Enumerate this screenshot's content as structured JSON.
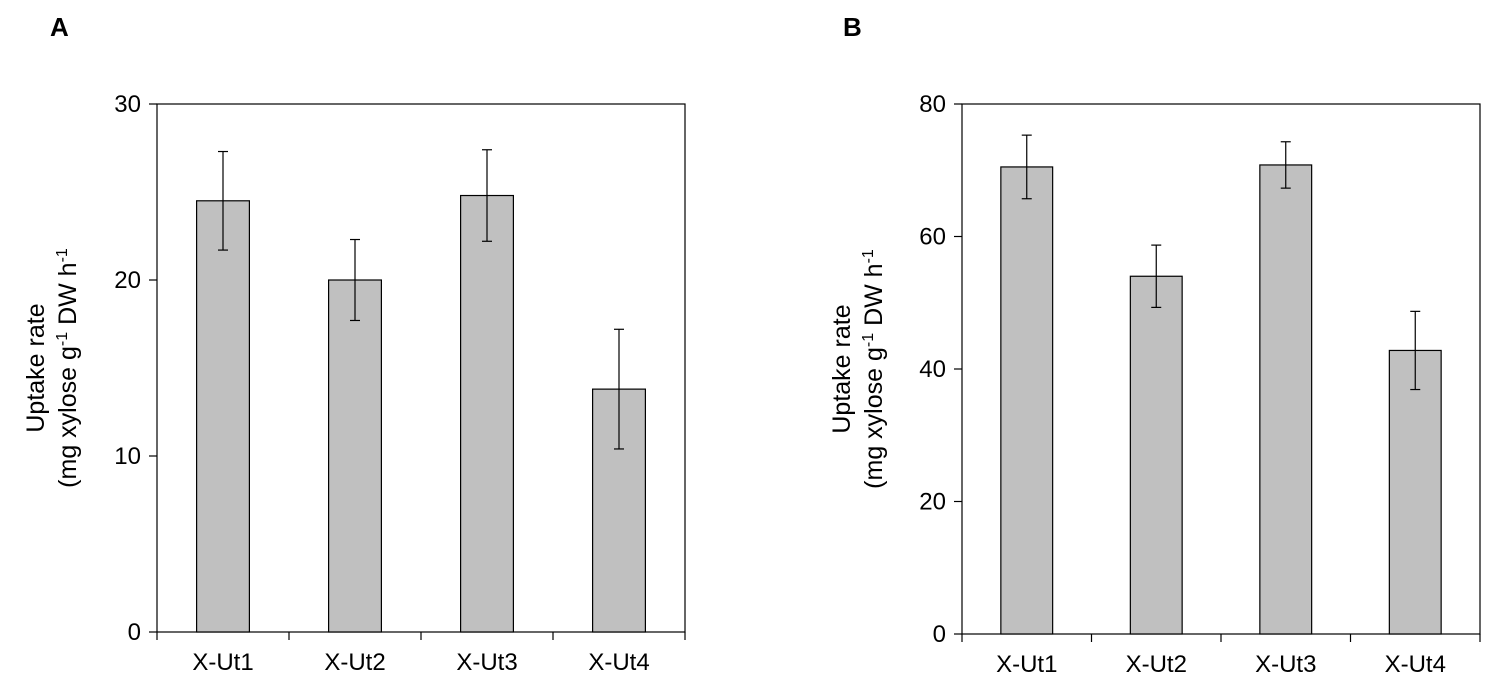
{
  "chart_data": [
    {
      "panel": "A",
      "type": "bar",
      "categories": [
        "X-Ut1",
        "X-Ut2",
        "X-Ut3",
        "X-Ut4"
      ],
      "values": [
        24.5,
        20.0,
        24.8,
        13.8
      ],
      "errors": [
        2.8,
        2.3,
        2.6,
        3.4
      ],
      "ylabel_line1": "Uptake rate",
      "ylabel_line2_pre": "(mg xylose g",
      "ylabel_line2_sup1": "-1",
      "ylabel_line2_mid": " DW h",
      "ylabel_line2_sup2": "-1",
      "ylim": [
        0,
        30
      ],
      "yticks": [
        0,
        10,
        20,
        30
      ],
      "ytick_labels": [
        "0",
        "10",
        "20",
        "30"
      ],
      "grid": false,
      "bar_color": "#c0c0c0"
    },
    {
      "panel": "B",
      "type": "bar",
      "categories": [
        "X-Ut1",
        "X-Ut2",
        "X-Ut3",
        "X-Ut4"
      ],
      "values": [
        70.5,
        54.0,
        70.8,
        42.8
      ],
      "errors": [
        4.8,
        4.7,
        3.5,
        5.9
      ],
      "ylabel_line1": "Uptake rate",
      "ylabel_line2_pre": "(mg xylose g",
      "ylabel_line2_sup1": "-1",
      "ylabel_line2_mid": " DW h",
      "ylabel_line2_sup2": "-1",
      "ylim": [
        0,
        80
      ],
      "yticks": [
        0,
        20,
        40,
        60,
        80
      ],
      "ytick_labels": [
        "0",
        "20",
        "40",
        "60",
        "80"
      ],
      "grid": false,
      "bar_color": "#c0c0c0"
    }
  ],
  "panels": {
    "a_label": "A",
    "b_label": "B"
  }
}
